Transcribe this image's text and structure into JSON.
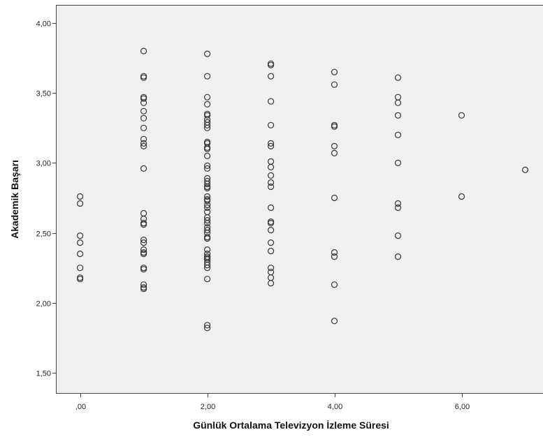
{
  "chart_data": {
    "type": "scatter",
    "title": "",
    "xlabel": "Günlük Ortalama Televizyon İzleme Süresi",
    "ylabel": "Akademik Başarı",
    "xlim": [
      -0.38,
      7.28
    ],
    "ylim": [
      1.35,
      4.13
    ],
    "xticks": [
      0,
      2,
      4,
      6
    ],
    "xtick_labels": [
      ",00",
      "2,00",
      "4,00",
      "6,00"
    ],
    "yticks": [
      1.5,
      2.0,
      2.5,
      3.0,
      3.5,
      4.0
    ],
    "ytick_labels": [
      "1,50",
      "2,00",
      "2,50",
      "3,00",
      "3,50",
      "4,00"
    ],
    "grid": false,
    "legend": "none",
    "colors": {
      "plot_background": "#f0f0f0",
      "marker_edge": "#333333",
      "axis": "#444444"
    },
    "series": [
      {
        "points": [
          [
            0,
            2.76
          ],
          [
            0,
            2.71
          ],
          [
            0,
            2.48
          ],
          [
            0,
            2.43
          ],
          [
            0,
            2.35
          ],
          [
            0,
            2.25
          ],
          [
            0,
            2.18
          ],
          [
            0,
            2.17
          ],
          [
            1,
            3.8
          ],
          [
            1,
            3.62
          ],
          [
            1,
            3.61
          ],
          [
            1,
            3.47
          ],
          [
            1,
            3.46
          ],
          [
            1,
            3.43
          ],
          [
            1,
            3.37
          ],
          [
            1,
            3.32
          ],
          [
            1,
            3.25
          ],
          [
            1,
            3.17
          ],
          [
            1,
            3.14
          ],
          [
            1,
            3.12
          ],
          [
            1,
            2.96
          ],
          [
            1,
            2.64
          ],
          [
            1,
            2.6
          ],
          [
            1,
            2.57
          ],
          [
            1,
            2.56
          ],
          [
            1,
            2.45
          ],
          [
            1,
            2.43
          ],
          [
            1,
            2.38
          ],
          [
            1,
            2.36
          ],
          [
            1,
            2.35
          ],
          [
            1,
            2.25
          ],
          [
            1,
            2.24
          ],
          [
            1,
            2.13
          ],
          [
            1,
            2.11
          ],
          [
            1,
            2.1
          ],
          [
            2,
            3.78
          ],
          [
            2,
            3.62
          ],
          [
            2,
            3.47
          ],
          [
            2,
            3.42
          ],
          [
            2,
            3.35
          ],
          [
            2,
            3.34
          ],
          [
            2,
            3.31
          ],
          [
            2,
            3.29
          ],
          [
            2,
            3.27
          ],
          [
            2,
            3.25
          ],
          [
            2,
            3.15
          ],
          [
            2,
            3.14
          ],
          [
            2,
            3.11
          ],
          [
            2,
            3.1
          ],
          [
            2,
            3.05
          ],
          [
            2,
            2.98
          ],
          [
            2,
            2.96
          ],
          [
            2,
            2.89
          ],
          [
            2,
            2.87
          ],
          [
            2,
            2.85
          ],
          [
            2,
            2.83
          ],
          [
            2,
            2.82
          ],
          [
            2,
            2.76
          ],
          [
            2,
            2.74
          ],
          [
            2,
            2.73
          ],
          [
            2,
            2.7
          ],
          [
            2,
            2.68
          ],
          [
            2,
            2.65
          ],
          [
            2,
            2.61
          ],
          [
            2,
            2.59
          ],
          [
            2,
            2.57
          ],
          [
            2,
            2.54
          ],
          [
            2,
            2.52
          ],
          [
            2,
            2.5
          ],
          [
            2,
            2.47
          ],
          [
            2,
            2.46
          ],
          [
            2,
            2.38
          ],
          [
            2,
            2.35
          ],
          [
            2,
            2.33
          ],
          [
            2,
            2.32
          ],
          [
            2,
            2.31
          ],
          [
            2,
            2.29
          ],
          [
            2,
            2.27
          ],
          [
            2,
            2.25
          ],
          [
            2,
            2.17
          ],
          [
            2,
            1.84
          ],
          [
            2,
            1.82
          ],
          [
            3,
            3.71
          ],
          [
            3,
            3.7
          ],
          [
            3,
            3.62
          ],
          [
            3,
            3.44
          ],
          [
            3,
            3.27
          ],
          [
            3,
            3.14
          ],
          [
            3,
            3.12
          ],
          [
            3,
            3.01
          ],
          [
            3,
            2.97
          ],
          [
            3,
            2.91
          ],
          [
            3,
            2.86
          ],
          [
            3,
            2.83
          ],
          [
            3,
            2.68
          ],
          [
            3,
            2.58
          ],
          [
            3,
            2.57
          ],
          [
            3,
            2.52
          ],
          [
            3,
            2.43
          ],
          [
            3,
            2.37
          ],
          [
            3,
            2.25
          ],
          [
            3,
            2.22
          ],
          [
            3,
            2.18
          ],
          [
            3,
            2.14
          ],
          [
            4,
            3.65
          ],
          [
            4,
            3.56
          ],
          [
            4,
            3.27
          ],
          [
            4,
            3.26
          ],
          [
            4,
            3.12
          ],
          [
            4,
            3.07
          ],
          [
            4,
            2.75
          ],
          [
            4,
            2.36
          ],
          [
            4,
            2.33
          ],
          [
            4,
            2.13
          ],
          [
            4,
            1.87
          ],
          [
            5,
            3.61
          ],
          [
            5,
            3.47
          ],
          [
            5,
            3.43
          ],
          [
            5,
            3.34
          ],
          [
            5,
            3.2
          ],
          [
            5,
            3.0
          ],
          [
            5,
            2.71
          ],
          [
            5,
            2.68
          ],
          [
            5,
            2.48
          ],
          [
            5,
            2.33
          ],
          [
            6,
            3.34
          ],
          [
            6,
            2.76
          ],
          [
            7,
            2.95
          ]
        ]
      }
    ]
  }
}
